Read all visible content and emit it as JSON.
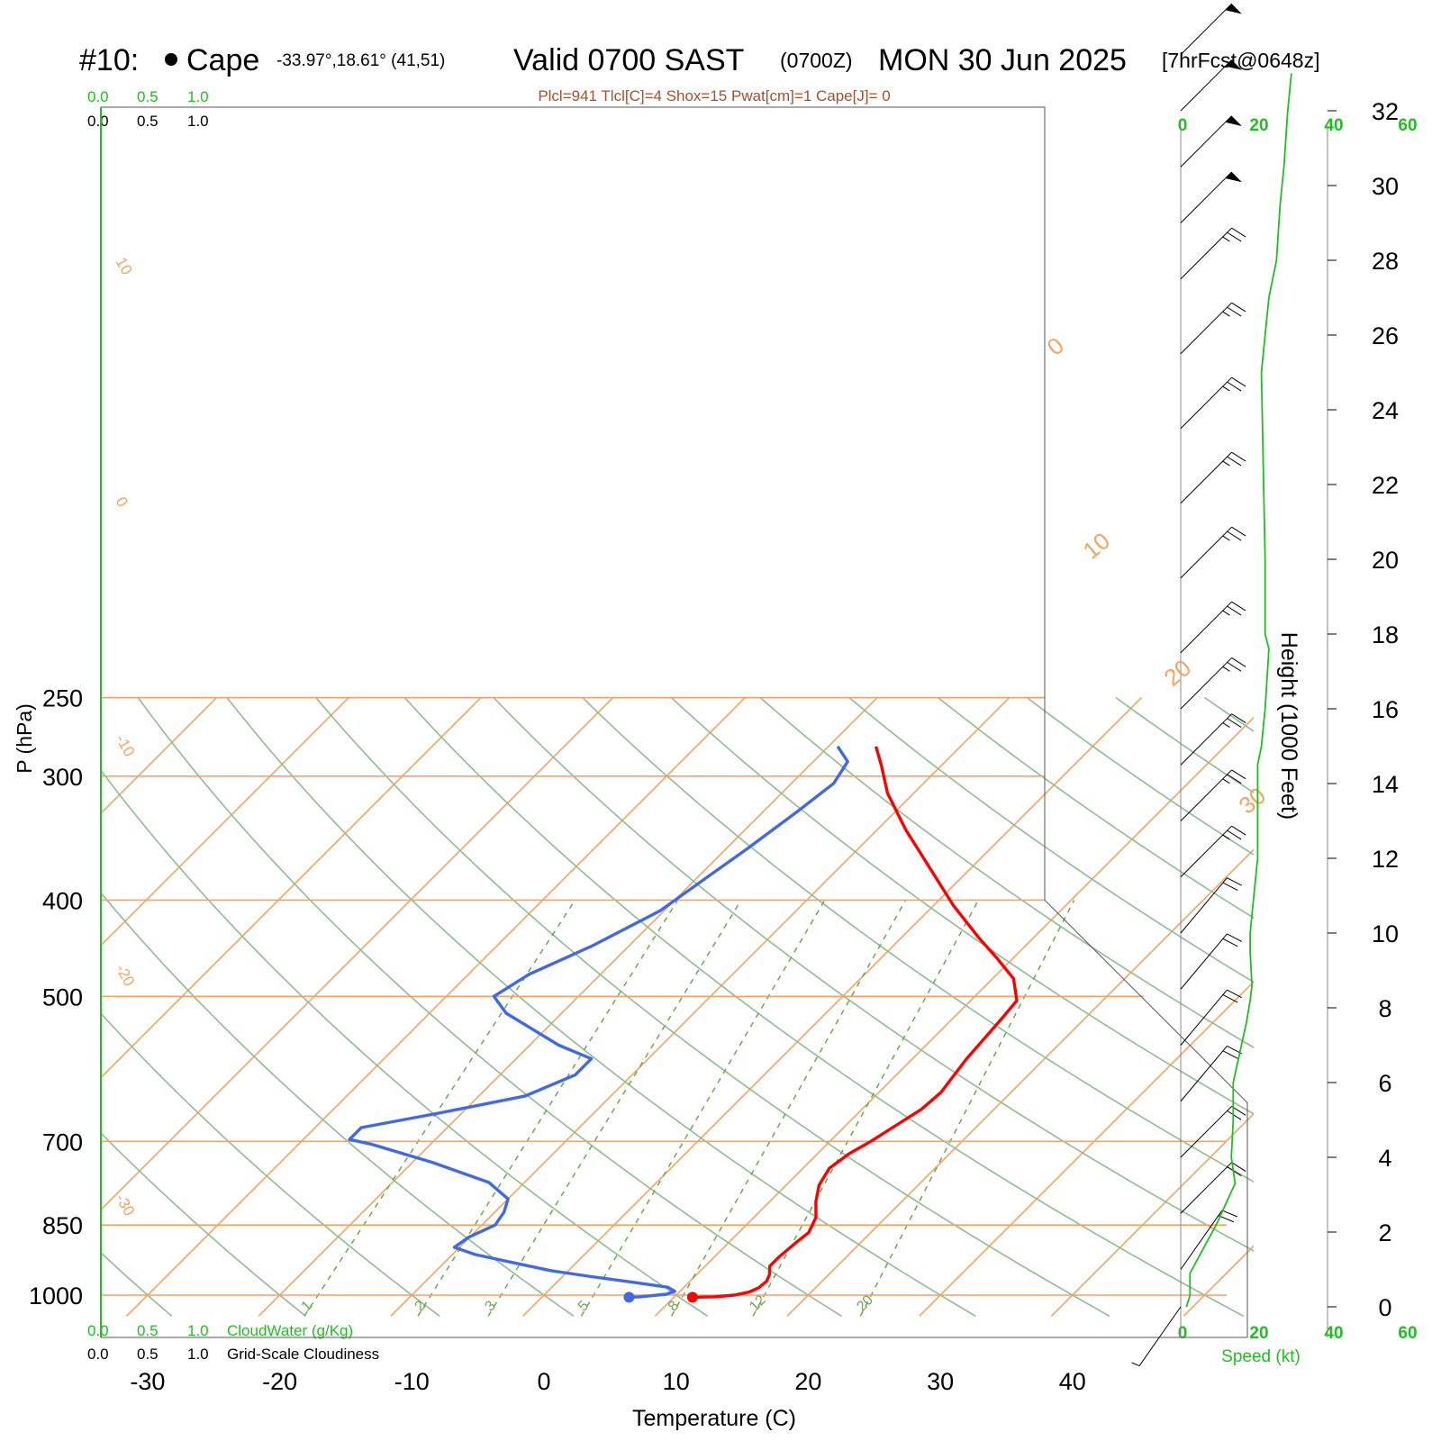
{
  "header": {
    "station_id": "#10:",
    "station_name": "Cape",
    "coords": "-33.97°,18.61° (41,51)",
    "valid": "Valid 0700 SAST",
    "zulu": "(0700Z)",
    "date": "MON 30 Jun 2025",
    "forecast": "[7hrFcst@0648z]"
  },
  "indices": "Plcl=941 Tlcl[C]=4 Shox=15 Pwat[cm]=1 Cape[J]= 0",
  "colors": {
    "temperature": "#ff0000",
    "dewpoint": "#4169e1",
    "isotherm": "#f4a460",
    "dry_adiabat": "#8fbc8f",
    "mixing_ratio": "#6aa84f",
    "wind_profile": "#1fbf1f",
    "indices_text": "#a0522d"
  },
  "labels": {
    "cloudwater_scale": [
      "0.0",
      "0.5",
      "1.0"
    ],
    "cloudiness_scale": [
      "0.0",
      "0.5",
      "1.0"
    ],
    "cloudwater_title": "CloudWater (g/Kg)",
    "cloudiness_title": "Grid-Scale Cloudiness",
    "speed_axis": [
      "0",
      "20",
      "40",
      "60"
    ],
    "speed_title": "Speed (kt)",
    "height_title": "Height (1000 Feet)",
    "pressure_title": "P (hPa)",
    "temp_title": "Temperature (C)",
    "isotherm_labels": [
      "10",
      "0",
      "-10",
      "-20",
      "-30",
      "0",
      "10",
      "20",
      "30"
    ],
    "mixing_labels": [
      "1",
      "2",
      "3",
      "5",
      "8",
      "12",
      "20"
    ]
  },
  "chart_data": {
    "type": "line",
    "title": "Skew-T sounding",
    "xlabel": "Temperature (C)",
    "ylabel": "P (hPa)",
    "x_ticks": [
      -30,
      -20,
      -10,
      0,
      10,
      20,
      30,
      40
    ],
    "y_ticks": [
      250,
      300,
      400,
      500,
      700,
      850,
      1000
    ],
    "height_ticks": [
      0,
      2,
      4,
      6,
      8,
      10,
      12,
      14,
      16,
      18,
      20,
      22,
      24,
      26,
      28,
      30,
      32
    ],
    "series": [
      {
        "name": "Temperature",
        "points": [
          [
            11.4,
            1005
          ],
          [
            13.0,
            1004
          ],
          [
            14.4,
            1000
          ],
          [
            15.3,
            993
          ],
          [
            15.7,
            983
          ],
          [
            15.8,
            968
          ],
          [
            15.5,
            953
          ],
          [
            14.9,
            935
          ],
          [
            14.9,
            915
          ],
          [
            15.1,
            885
          ],
          [
            15.3,
            865
          ],
          [
            14.7,
            835
          ],
          [
            13.5,
            805
          ],
          [
            12.5,
            775
          ],
          [
            12.0,
            745
          ],
          [
            12.4,
            720
          ],
          [
            13.1,
            700
          ],
          [
            13.7,
            678
          ],
          [
            14.5,
            650
          ],
          [
            14.7,
            625
          ],
          [
            14.1,
            578
          ],
          [
            13.9,
            550
          ],
          [
            13.7,
            525
          ],
          [
            13.5,
            505
          ],
          [
            11.6,
            480
          ],
          [
            8.7,
            457
          ],
          [
            5.8,
            436
          ],
          [
            1.5,
            405
          ],
          [
            -3.3,
            370
          ],
          [
            -7.8,
            340
          ],
          [
            -12.0,
            312
          ],
          [
            -14.5,
            293
          ],
          [
            -16.4,
            280
          ]
        ]
      },
      {
        "name": "Dewpoint",
        "points": [
          [
            6.6,
            1005
          ],
          [
            7.4,
            1004
          ],
          [
            9.2,
            998
          ],
          [
            9.6,
            991
          ],
          [
            8.8,
            982
          ],
          [
            5.6,
            970
          ],
          [
            2.2,
            958
          ],
          [
            -1.3,
            945
          ],
          [
            -4.7,
            928
          ],
          [
            -8.3,
            910
          ],
          [
            -10.4,
            895
          ],
          [
            -10.1,
            875
          ],
          [
            -9.0,
            850
          ],
          [
            -9.3,
            825
          ],
          [
            -10.0,
            800
          ],
          [
            -12.7,
            770
          ],
          [
            -18.5,
            735
          ],
          [
            -24.4,
            705
          ],
          [
            -26.5,
            697
          ],
          [
            -26.5,
            678
          ],
          [
            -21.6,
            655
          ],
          [
            -16.5,
            630
          ],
          [
            -14.3,
            600
          ],
          [
            -14.3,
            578
          ],
          [
            -17.8,
            560
          ],
          [
            -24.2,
            520
          ],
          [
            -26.4,
            500
          ],
          [
            -25.4,
            475
          ],
          [
            -22.8,
            445
          ],
          [
            -20.3,
            410
          ],
          [
            -19.3,
            380
          ],
          [
            -18.4,
            355
          ],
          [
            -17.4,
            325
          ],
          [
            -16.8,
            305
          ],
          [
            -17.4,
            290
          ],
          [
            -19.3,
            280
          ]
        ]
      },
      {
        "name": "Speed (kt)",
        "points": [
          [
            1,
            0
          ],
          [
            2,
            0.3
          ],
          [
            2,
            0.9
          ],
          [
            9,
            2.2
          ],
          [
            14,
            3.3
          ],
          [
            13,
            4
          ],
          [
            13.5,
            5
          ],
          [
            13.5,
            6
          ],
          [
            17,
            7.6
          ],
          [
            18,
            8.2
          ],
          [
            18.5,
            8.6
          ],
          [
            18,
            9.5
          ],
          [
            18,
            10
          ],
          [
            19,
            11
          ],
          [
            20,
            12
          ],
          [
            20,
            14.5
          ],
          [
            21,
            15
          ],
          [
            22,
            16
          ],
          [
            23,
            17.6
          ],
          [
            22,
            18
          ],
          [
            22,
            20
          ],
          [
            21,
            25
          ],
          [
            22,
            26
          ],
          [
            23,
            27
          ],
          [
            25,
            28
          ],
          [
            26,
            29.5
          ],
          [
            27,
            30.5
          ],
          [
            28,
            32
          ],
          [
            29,
            33
          ]
        ]
      }
    ],
    "wind_barbs": [
      {
        "height_kft": 0.0,
        "dir": 145,
        "kt": 6
      },
      {
        "height_kft": 1.0,
        "dir": 325,
        "kt": 20
      },
      {
        "height_kft": 2.5,
        "dir": 315,
        "kt": 20
      },
      {
        "height_kft": 4.0,
        "dir": 315,
        "kt": 20
      },
      {
        "height_kft": 5.5,
        "dir": 320,
        "kt": 20
      },
      {
        "height_kft": 7.0,
        "dir": 320,
        "kt": 20
      },
      {
        "height_kft": 8.5,
        "dir": 320,
        "kt": 20
      },
      {
        "height_kft": 10.0,
        "dir": 320,
        "kt": 20
      },
      {
        "height_kft": 11.5,
        "dir": 315,
        "kt": 25
      },
      {
        "height_kft": 13.0,
        "dir": 315,
        "kt": 25
      },
      {
        "height_kft": 14.5,
        "dir": 315,
        "kt": 25
      },
      {
        "height_kft": 16.0,
        "dir": 315,
        "kt": 25
      },
      {
        "height_kft": 17.5,
        "dir": 315,
        "kt": 25
      },
      {
        "height_kft": 19.5,
        "dir": 315,
        "kt": 25
      },
      {
        "height_kft": 21.5,
        "dir": 315,
        "kt": 25
      },
      {
        "height_kft": 23.5,
        "dir": 315,
        "kt": 25
      },
      {
        "height_kft": 25.5,
        "dir": 315,
        "kt": 25
      },
      {
        "height_kft": 27.5,
        "dir": 315,
        "kt": 25
      },
      {
        "height_kft": 29.0,
        "dir": 315,
        "kt": 50
      },
      {
        "height_kft": 30.5,
        "dir": 315,
        "kt": 50
      },
      {
        "height_kft": 32.0,
        "dir": 315,
        "kt": 50
      },
      {
        "height_kft": 33.5,
        "dir": 315,
        "kt": 50
      }
    ]
  }
}
